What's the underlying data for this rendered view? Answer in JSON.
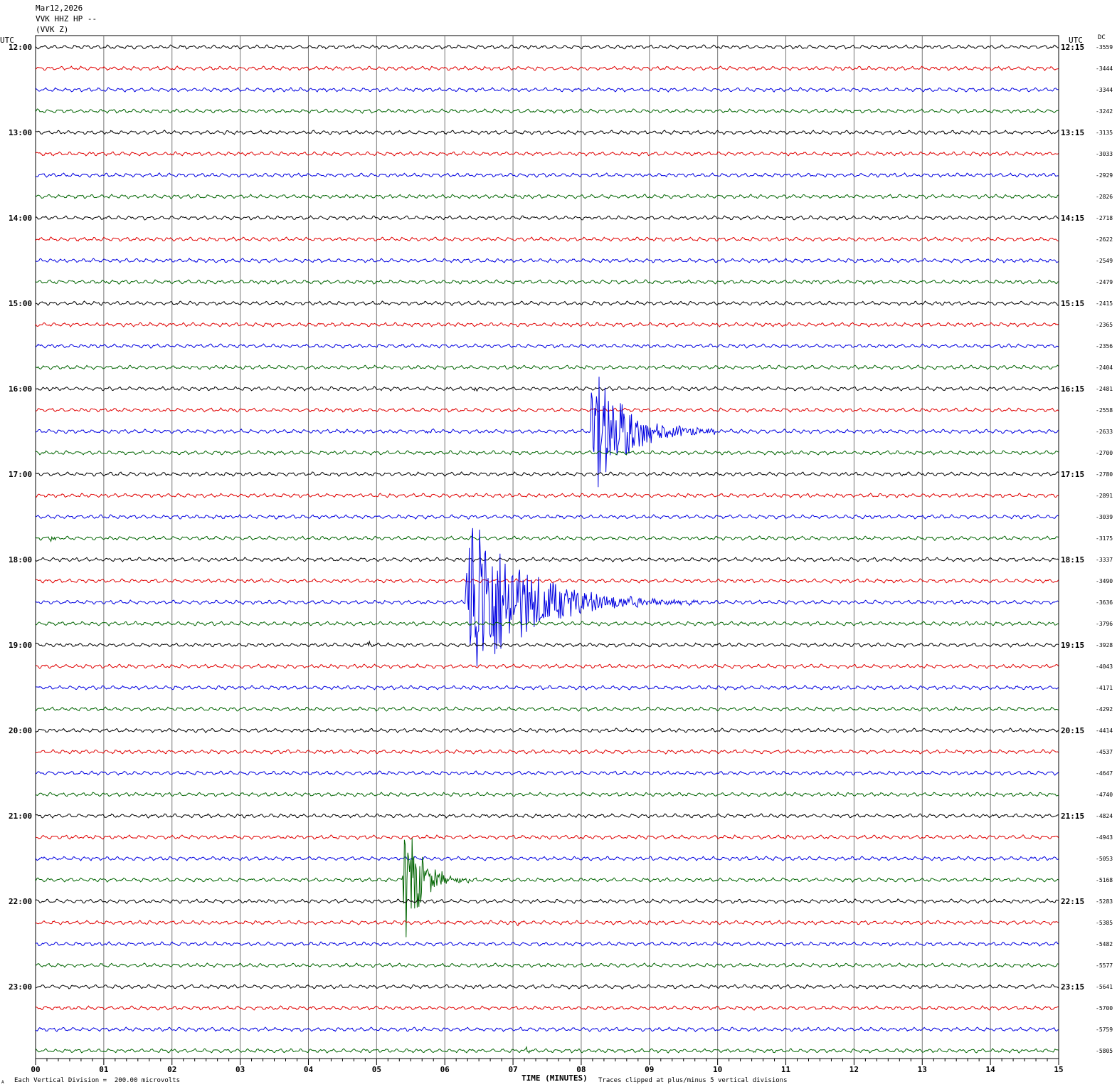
{
  "header": {
    "date": "Mar12,2026",
    "station": "VVK HHZ HP --",
    "component": "(VVK Z)"
  },
  "left_axis_title": "UTC",
  "right_axis_title": "UTC",
  "dc_title": "DC",
  "footer": {
    "scale_note": "Each Vertical Division =  200.00 microvolts",
    "x_title": "TIME (MINUTES)",
    "clip_note": "Traces clipped at plus/minus 5 vertical divisions",
    "corner_mark": "A"
  },
  "chart_data": {
    "type": "line",
    "xlabel": "TIME (MINUTES)",
    "xlim": [
      0,
      15
    ],
    "x_ticks": [
      "00",
      "01",
      "02",
      "03",
      "04",
      "05",
      "06",
      "07",
      "08",
      "09",
      "10",
      "11",
      "12",
      "13",
      "14",
      "15"
    ],
    "trace_colors": [
      "#000000",
      "#e00000",
      "#0000e0",
      "#006400"
    ],
    "hour_labels_left": [
      "12:00",
      "13:00",
      "14:00",
      "15:00",
      "16:00",
      "17:00",
      "18:00",
      "19:00",
      "20:00",
      "21:00",
      "22:00",
      "23:00"
    ],
    "hour_labels_right": [
      "12:15",
      "13:15",
      "14:15",
      "15:15",
      "16:15",
      "17:15",
      "18:15",
      "19:15",
      "20:15",
      "21:15",
      "22:15",
      "23:15"
    ],
    "dc_offsets": [
      "-3559",
      "-3444",
      "-3344",
      "-3242",
      "-3135",
      "-3033",
      "-2929",
      "-2826",
      "-2718",
      "-2622",
      "-2549",
      "-2479",
      "-2415",
      "-2365",
      "-2356",
      "-2404",
      "-2481",
      "-2558",
      "-2633",
      "-2700",
      "-2780",
      "-2891",
      "-3039",
      "-3175",
      "-3337",
      "-3490",
      "-3636",
      "-3796",
      "-3928",
      "-4043",
      "-4171",
      "-4292",
      "-4414",
      "-4537",
      "-4647",
      "-4740",
      "-4824",
      "-4943",
      "-5053",
      "-5168",
      "-5283",
      "-5385",
      "-5482",
      "-5577",
      "-5641",
      "-5700",
      "-5759",
      "-5805"
    ],
    "events": [
      {
        "trace": 18,
        "onset_min": 8.12,
        "peak_amp": 3.5,
        "duration_min": 2.2
      },
      {
        "trace": 26,
        "onset_min": 6.3,
        "peak_amp": 5.0,
        "duration_min": 3.5
      },
      {
        "trace": 39,
        "onset_min": 5.38,
        "peak_amp": 3.6,
        "duration_min": 1.1
      },
      {
        "trace": 28,
        "onset_min": 4.85,
        "peak_amp": 0.3,
        "duration_min": 0.25
      },
      {
        "trace": 16,
        "onset_min": 6.4,
        "peak_amp": 0.2,
        "duration_min": 0.3
      },
      {
        "trace": 23,
        "onset_min": 0.2,
        "peak_amp": 0.25,
        "duration_min": 0.3
      },
      {
        "trace": 41,
        "onset_min": 7.05,
        "peak_amp": 0.4,
        "duration_min": 0.12
      },
      {
        "trace": 47,
        "onset_min": 7.18,
        "peak_amp": 0.6,
        "duration_min": 0.15
      },
      {
        "trace": 45,
        "onset_min": 10.45,
        "peak_amp": 0.35,
        "duration_min": 0.1
      },
      {
        "trace": 18,
        "onset_min": 5.7,
        "peak_amp": 0.12,
        "duration_min": 0.6
      }
    ]
  }
}
